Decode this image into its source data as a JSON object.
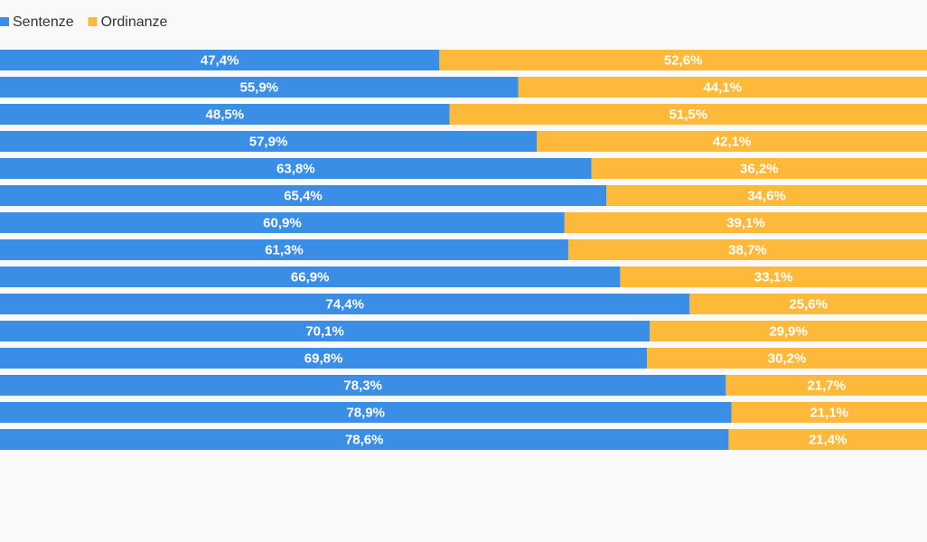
{
  "chart_data": {
    "type": "stacked-bar",
    "orientation": "horizontal",
    "xlim": [
      0,
      100
    ],
    "series": [
      {
        "name": "Sentenze",
        "color": "#3a8ee6",
        "values": [
          47.4,
          55.9,
          48.5,
          57.9,
          63.8,
          65.4,
          60.9,
          61.3,
          66.9,
          74.4,
          70.1,
          69.8,
          78.3,
          78.9,
          78.6
        ],
        "value_labels": [
          "47,4%",
          "55,9%",
          "48,5%",
          "57,9%",
          "63,8%",
          "65,4%",
          "60,9%",
          "61,3%",
          "66,9%",
          "74,4%",
          "70,1%",
          "69,8%",
          "78,3%",
          "78,9%",
          "78,6%"
        ]
      },
      {
        "name": "Ordinanze",
        "color": "#fdb93a",
        "values": [
          52.6,
          44.1,
          51.5,
          42.1,
          36.2,
          34.6,
          39.1,
          38.7,
          33.1,
          25.6,
          29.9,
          30.2,
          21.7,
          21.1,
          21.4
        ],
        "value_labels": [
          "52,6%",
          "44,1%",
          "51,5%",
          "42,1%",
          "36,2%",
          "34,6%",
          "39,1%",
          "38,7%",
          "33,1%",
          "25,6%",
          "29,9%",
          "30,2%",
          "21,7%",
          "21,1%",
          "21,4%"
        ]
      }
    ]
  }
}
